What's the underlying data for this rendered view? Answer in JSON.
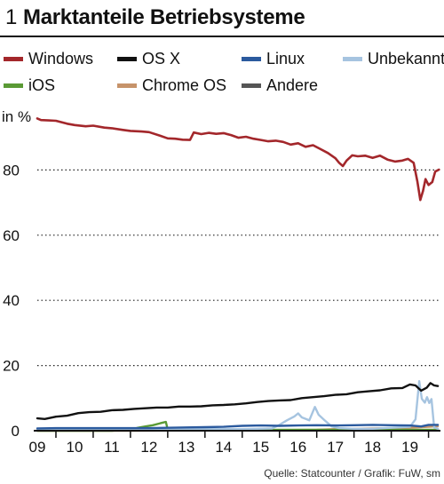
{
  "header": {
    "figure_number": "1",
    "title": "Marktanteile Betriebsysteme"
  },
  "source": "Quelle: Statcounter / Grafik: FuW, sm",
  "chart_data": {
    "type": "line",
    "title": "Marktanteile Betriebsysteme",
    "ylabel": "in %",
    "ylim": [
      0,
      100
    ],
    "yticks": [
      0,
      20,
      40,
      60,
      80
    ],
    "xlim": [
      2008.5,
      2019.0
    ],
    "xtick_labels": [
      "09",
      "10",
      "11",
      "12",
      "13",
      "14",
      "15",
      "16",
      "17",
      "18",
      "19"
    ],
    "grid": "horizontal dotted",
    "legend_position": "top",
    "series": [
      {
        "name": "Windows",
        "color": "#a3272b",
        "points": [
          [
            2008.5,
            95.8
          ],
          [
            2008.6,
            95.3
          ],
          [
            2008.8,
            95.2
          ],
          [
            2009.0,
            95.1
          ],
          [
            2009.3,
            94.2
          ],
          [
            2009.5,
            93.8
          ],
          [
            2009.8,
            93.4
          ],
          [
            2010.0,
            93.6
          ],
          [
            2010.3,
            93.0
          ],
          [
            2010.5,
            92.8
          ],
          [
            2010.8,
            92.3
          ],
          [
            2011.0,
            92.0
          ],
          [
            2011.3,
            91.8
          ],
          [
            2011.5,
            91.6
          ],
          [
            2011.8,
            90.5
          ],
          [
            2012.0,
            89.7
          ],
          [
            2012.2,
            89.6
          ],
          [
            2012.4,
            89.3
          ],
          [
            2012.6,
            89.2
          ],
          [
            2012.7,
            91.5
          ],
          [
            2012.9,
            91.0
          ],
          [
            2013.1,
            91.4
          ],
          [
            2013.3,
            91.1
          ],
          [
            2013.5,
            91.3
          ],
          [
            2013.7,
            90.7
          ],
          [
            2013.9,
            89.9
          ],
          [
            2014.1,
            90.2
          ],
          [
            2014.3,
            89.6
          ],
          [
            2014.5,
            89.2
          ],
          [
            2014.7,
            88.8
          ],
          [
            2014.9,
            89.0
          ],
          [
            2015.1,
            88.6
          ],
          [
            2015.3,
            87.8
          ],
          [
            2015.5,
            88.2
          ],
          [
            2015.7,
            87.1
          ],
          [
            2015.9,
            87.6
          ],
          [
            2016.1,
            86.4
          ],
          [
            2016.3,
            85.2
          ],
          [
            2016.5,
            83.6
          ],
          [
            2016.6,
            82.2
          ],
          [
            2016.7,
            81.2
          ],
          [
            2016.8,
            82.9
          ],
          [
            2016.95,
            84.5
          ],
          [
            2017.1,
            84.2
          ],
          [
            2017.3,
            84.4
          ],
          [
            2017.5,
            83.7
          ],
          [
            2017.7,
            84.4
          ],
          [
            2017.9,
            83.2
          ],
          [
            2018.1,
            82.6
          ],
          [
            2018.3,
            82.9
          ],
          [
            2018.45,
            83.4
          ],
          [
            2018.6,
            82.2
          ],
          [
            2018.7,
            76.5
          ],
          [
            2018.78,
            70.8
          ],
          [
            2018.85,
            73.5
          ],
          [
            2018.92,
            77.2
          ],
          [
            2019.0,
            75.4
          ],
          [
            2019.1,
            76.3
          ],
          [
            2019.18,
            79.5
          ],
          [
            2019.28,
            80.1
          ]
        ]
      },
      {
        "name": "OS X",
        "color": "#111111",
        "points": [
          [
            2008.5,
            3.8
          ],
          [
            2008.7,
            3.6
          ],
          [
            2009.0,
            4.3
          ],
          [
            2009.3,
            4.6
          ],
          [
            2009.6,
            5.4
          ],
          [
            2009.9,
            5.7
          ],
          [
            2010.2,
            5.8
          ],
          [
            2010.5,
            6.3
          ],
          [
            2010.8,
            6.4
          ],
          [
            2011.1,
            6.7
          ],
          [
            2011.4,
            6.9
          ],
          [
            2011.7,
            7.1
          ],
          [
            2012.0,
            7.1
          ],
          [
            2012.3,
            7.4
          ],
          [
            2012.6,
            7.4
          ],
          [
            2012.9,
            7.5
          ],
          [
            2013.2,
            7.8
          ],
          [
            2013.5,
            7.9
          ],
          [
            2013.8,
            8.1
          ],
          [
            2014.1,
            8.4
          ],
          [
            2014.4,
            8.8
          ],
          [
            2014.7,
            9.1
          ],
          [
            2015.0,
            9.3
          ],
          [
            2015.3,
            9.4
          ],
          [
            2015.6,
            10.0
          ],
          [
            2015.9,
            10.3
          ],
          [
            2016.2,
            10.6
          ],
          [
            2016.5,
            11.0
          ],
          [
            2016.8,
            11.2
          ],
          [
            2017.1,
            11.8
          ],
          [
            2017.4,
            12.1
          ],
          [
            2017.7,
            12.4
          ],
          [
            2018.0,
            13.0
          ],
          [
            2018.3,
            13.1
          ],
          [
            2018.5,
            14.2
          ],
          [
            2018.65,
            13.9
          ],
          [
            2018.8,
            12.3
          ],
          [
            2018.95,
            13.2
          ],
          [
            2019.05,
            14.6
          ],
          [
            2019.15,
            13.9
          ],
          [
            2019.25,
            13.7
          ]
        ]
      },
      {
        "name": "Linux",
        "color": "#2b5a9e",
        "points": [
          [
            2008.5,
            0.7
          ],
          [
            2009.0,
            0.8
          ],
          [
            2009.5,
            0.8
          ],
          [
            2010.0,
            0.8
          ],
          [
            2010.5,
            0.8
          ],
          [
            2011.0,
            0.8
          ],
          [
            2011.5,
            0.8
          ],
          [
            2012.0,
            0.9
          ],
          [
            2012.5,
            1.0
          ],
          [
            2013.0,
            1.1
          ],
          [
            2013.5,
            1.2
          ],
          [
            2014.0,
            1.5
          ],
          [
            2014.5,
            1.6
          ],
          [
            2015.0,
            1.5
          ],
          [
            2015.5,
            1.6
          ],
          [
            2016.0,
            1.7
          ],
          [
            2016.5,
            1.6
          ],
          [
            2017.0,
            1.7
          ],
          [
            2017.5,
            1.8
          ],
          [
            2018.0,
            1.7
          ],
          [
            2018.5,
            1.6
          ],
          [
            2018.8,
            1.3
          ],
          [
            2019.0,
            1.8
          ],
          [
            2019.25,
            1.8
          ]
        ]
      },
      {
        "name": "Unbekannt",
        "color": "#a6c4e0",
        "points": [
          [
            2008.5,
            0.3
          ],
          [
            2009.0,
            0.3
          ],
          [
            2010.0,
            0.3
          ],
          [
            2011.0,
            0.3
          ],
          [
            2012.0,
            0.4
          ],
          [
            2013.0,
            0.5
          ],
          [
            2014.0,
            0.5
          ],
          [
            2014.8,
            0.7
          ],
          [
            2015.0,
            1.8
          ],
          [
            2015.2,
            3.2
          ],
          [
            2015.4,
            4.4
          ],
          [
            2015.5,
            5.3
          ],
          [
            2015.6,
            4.1
          ],
          [
            2015.8,
            3.2
          ],
          [
            2015.95,
            7.3
          ],
          [
            2016.05,
            4.9
          ],
          [
            2016.2,
            3.3
          ],
          [
            2016.4,
            1.3
          ],
          [
            2016.6,
            0.8
          ],
          [
            2017.0,
            0.6
          ],
          [
            2017.5,
            0.6
          ],
          [
            2018.0,
            0.9
          ],
          [
            2018.5,
            1.2
          ],
          [
            2018.65,
            3.5
          ],
          [
            2018.75,
            15.2
          ],
          [
            2018.82,
            9.8
          ],
          [
            2018.9,
            8.6
          ],
          [
            2018.96,
            10.3
          ],
          [
            2019.02,
            8.5
          ],
          [
            2019.08,
            9.7
          ],
          [
            2019.15,
            1.0
          ],
          [
            2019.25,
            0.6
          ]
        ]
      },
      {
        "name": "iOS",
        "color": "#5a9a35",
        "points": [
          [
            2008.5,
            0.0
          ],
          [
            2010.5,
            0.0
          ],
          [
            2011.0,
            0.3
          ],
          [
            2011.2,
            0.9
          ],
          [
            2011.4,
            1.3
          ],
          [
            2011.6,
            1.7
          ],
          [
            2011.8,
            2.3
          ],
          [
            2011.95,
            2.7
          ],
          [
            2012.0,
            0.3
          ],
          [
            2012.5,
            0.2
          ],
          [
            2013.0,
            0.2
          ],
          [
            2014.0,
            0.2
          ],
          [
            2015.0,
            0.3
          ],
          [
            2016.0,
            0.3
          ],
          [
            2017.0,
            0.3
          ],
          [
            2018.0,
            0.3
          ],
          [
            2019.25,
            0.3
          ]
        ]
      },
      {
        "name": "Chrome OS",
        "color": "#c6936a",
        "points": [
          [
            2008.5,
            0.0
          ],
          [
            2011.0,
            0.0
          ],
          [
            2013.0,
            0.1
          ],
          [
            2014.0,
            0.1
          ],
          [
            2015.0,
            0.2
          ],
          [
            2016.0,
            0.3
          ],
          [
            2016.5,
            0.5
          ],
          [
            2017.0,
            0.6
          ],
          [
            2017.5,
            0.7
          ],
          [
            2018.0,
            0.8
          ],
          [
            2018.5,
            0.9
          ],
          [
            2019.0,
            1.2
          ],
          [
            2019.25,
            1.4
          ]
        ]
      },
      {
        "name": "Andere",
        "color": "#555555",
        "points": [
          [
            2008.5,
            0.3
          ],
          [
            2010.0,
            0.3
          ],
          [
            2012.0,
            0.3
          ],
          [
            2014.0,
            0.2
          ],
          [
            2016.0,
            0.2
          ],
          [
            2018.0,
            0.2
          ],
          [
            2019.25,
            0.2
          ]
        ]
      }
    ]
  }
}
